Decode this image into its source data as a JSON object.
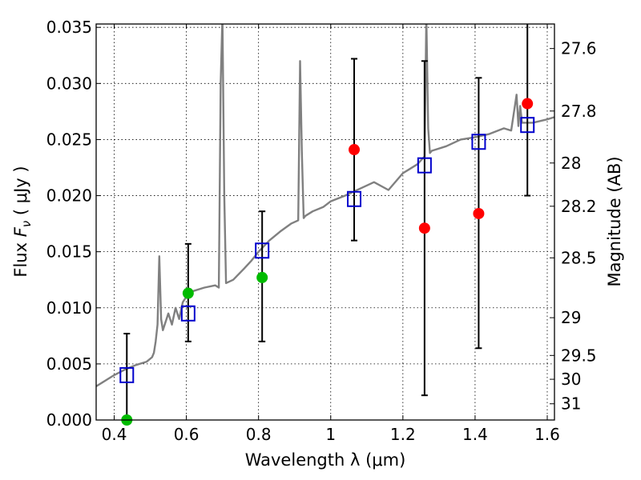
{
  "chart_data": {
    "type": "scatter",
    "xlabel": "Wavelength  λ (μm)",
    "ylabel": "Flux  F_ν  ( μJy )",
    "ylabel_parts": {
      "pre": "Flux  ",
      "sym": "F",
      "sub": "ν",
      "post": "  ( μJy )"
    },
    "y2label": "Magnitude (AB)",
    "xlim": [
      0.35,
      1.62
    ],
    "ylim": [
      0.0,
      0.0353
    ],
    "grid": true,
    "x_ticks": [
      {
        "value": 0.4,
        "label": "0.4"
      },
      {
        "value": 0.6,
        "label": "0.6"
      },
      {
        "value": 0.8,
        "label": "0.8"
      },
      {
        "value": 1.0,
        "label": "1"
      },
      {
        "value": 1.2,
        "label": "1.2"
      },
      {
        "value": 1.4,
        "label": "1.4"
      },
      {
        "value": 1.6,
        "label": "1.6"
      }
    ],
    "y_ticks": [
      {
        "value": 0.0,
        "label": "0.000"
      },
      {
        "value": 0.005,
        "label": "0.005"
      },
      {
        "value": 0.01,
        "label": "0.010"
      },
      {
        "value": 0.015,
        "label": "0.015"
      },
      {
        "value": 0.02,
        "label": "0.020"
      },
      {
        "value": 0.025,
        "label": "0.025"
      },
      {
        "value": 0.03,
        "label": "0.030"
      },
      {
        "value": 0.035,
        "label": "0.035"
      }
    ],
    "y2_ticks": [
      {
        "mag": 27.6,
        "label": "27.6"
      },
      {
        "mag": 27.8,
        "label": "27.8"
      },
      {
        "mag": 28.0,
        "label": "28"
      },
      {
        "mag": 28.2,
        "label": "28.2"
      },
      {
        "mag": 28.5,
        "label": "28.5"
      },
      {
        "mag": 29.0,
        "label": "29"
      },
      {
        "mag": 29.5,
        "label": "29.5"
      },
      {
        "mag": 30.0,
        "label": "30"
      },
      {
        "mag": 31.0,
        "label": "31"
      }
    ],
    "series": [
      {
        "kind": "spectrum",
        "color": "#808080",
        "x": [
          0.35,
          0.38,
          0.4,
          0.43,
          0.46,
          0.49,
          0.505,
          0.51,
          0.515,
          0.52,
          0.525,
          0.53,
          0.535,
          0.55,
          0.56,
          0.57,
          0.58,
          0.59,
          0.6,
          0.62,
          0.65,
          0.68,
          0.69,
          0.695,
          0.7,
          0.705,
          0.71,
          0.73,
          0.76,
          0.78,
          0.8,
          0.83,
          0.86,
          0.89,
          0.91,
          0.915,
          0.92,
          0.925,
          0.93,
          0.95,
          0.98,
          1.0,
          1.04,
          1.08,
          1.12,
          1.16,
          1.2,
          1.24,
          1.26,
          1.265,
          1.27,
          1.275,
          1.28,
          1.32,
          1.36,
          1.4,
          1.44,
          1.48,
          1.5,
          1.515,
          1.52,
          1.525,
          1.53,
          1.56,
          1.6,
          1.62
        ],
        "y": [
          0.003,
          0.0036,
          0.004,
          0.0045,
          0.0049,
          0.0052,
          0.0056,
          0.006,
          0.007,
          0.0085,
          0.0146,
          0.009,
          0.008,
          0.0095,
          0.0085,
          0.01,
          0.009,
          0.0105,
          0.011,
          0.0115,
          0.0118,
          0.012,
          0.0118,
          0.03,
          0.036,
          0.02,
          0.0122,
          0.0125,
          0.0135,
          0.0142,
          0.015,
          0.016,
          0.0168,
          0.0175,
          0.0178,
          0.032,
          0.024,
          0.018,
          0.0182,
          0.0186,
          0.019,
          0.0195,
          0.02,
          0.0206,
          0.0212,
          0.0205,
          0.022,
          0.0228,
          0.0235,
          0.036,
          0.026,
          0.0238,
          0.024,
          0.0244,
          0.025,
          0.0252,
          0.0255,
          0.026,
          0.0258,
          0.029,
          0.0262,
          0.028,
          0.0265,
          0.0265,
          0.0268,
          0.027
        ]
      },
      {
        "kind": "model-photometry",
        "marker": "open-square",
        "color": "#0000cc",
        "x": [
          0.435,
          0.605,
          0.81,
          1.065,
          1.26,
          1.41,
          1.545
        ],
        "y": [
          0.004,
          0.0095,
          0.0151,
          0.0197,
          0.0227,
          0.0248,
          0.0263
        ]
      },
      {
        "kind": "observed-errorbars",
        "color": "#000000",
        "x": [
          0.435,
          0.605,
          0.81,
          1.065,
          1.26,
          1.41,
          1.545
        ],
        "low": [
          0.0,
          0.007,
          0.007,
          0.016,
          0.0022,
          0.0064,
          0.02
        ],
        "high": [
          0.0077,
          0.0157,
          0.0186,
          0.0322,
          0.032,
          0.0305,
          0.036
        ]
      },
      {
        "kind": "observed-points",
        "marker": "filled-circle",
        "color": "#00bb00",
        "x": [
          0.435,
          0.605,
          0.81
        ],
        "y": [
          0.0,
          0.0113,
          0.0127
        ]
      },
      {
        "kind": "observed-points",
        "marker": "filled-circle",
        "color": "#ff0000",
        "x": [
          1.065,
          1.26,
          1.41,
          1.545
        ],
        "y": [
          0.0241,
          0.0171,
          0.0184,
          0.0282
        ]
      }
    ]
  }
}
